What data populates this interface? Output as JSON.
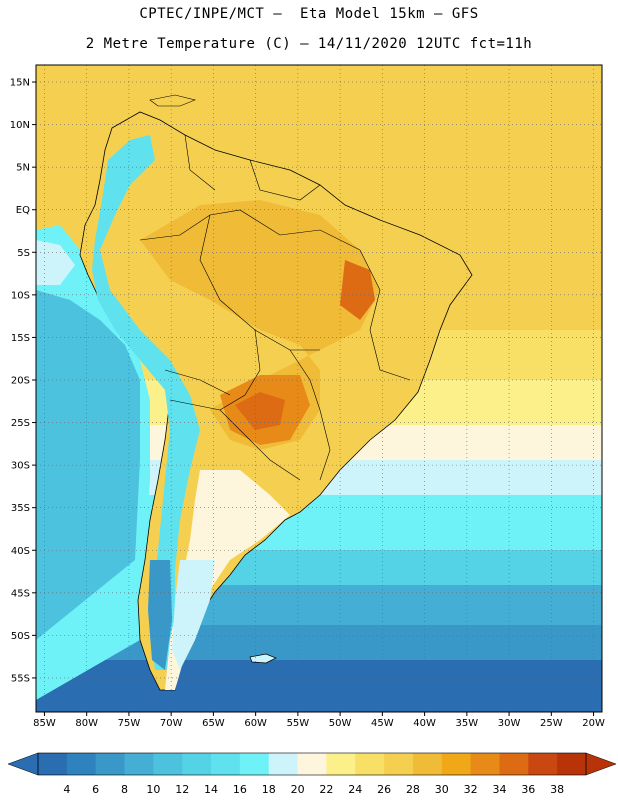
{
  "header": {
    "line1": "CPTEC/INPE/MCT –  Eta Model 15km – GFS",
    "line2": "2 Metre Temperature (C) – 14/11/2020 12UTC fct=11h"
  },
  "map": {
    "lon_range": [
      -86,
      -19
    ],
    "lat_range": [
      -59,
      17
    ],
    "lat_ticks": [
      "15N",
      "10N",
      "5N",
      "EQ",
      "5S",
      "10S",
      "15S",
      "20S",
      "25S",
      "30S",
      "35S",
      "40S",
      "45S",
      "50S",
      "55S"
    ],
    "lat_values": [
      15,
      10,
      5,
      0,
      -5,
      -10,
      -15,
      -20,
      -25,
      -30,
      -35,
      -40,
      -45,
      -50,
      -55
    ],
    "lon_ticks": [
      "85W",
      "80W",
      "75W",
      "70W",
      "65W",
      "60W",
      "55W",
      "50W",
      "45W",
      "40W",
      "35W",
      "30W",
      "25W",
      "20W"
    ],
    "lon_values": [
      -85,
      -80,
      -75,
      -70,
      -65,
      -60,
      -55,
      -50,
      -45,
      -40,
      -35,
      -30,
      -25,
      -20
    ],
    "gridlines": "dotted"
  },
  "colorbar": {
    "labels": [
      "4",
      "6",
      "8",
      "10",
      "12",
      "14",
      "16",
      "18",
      "20",
      "22",
      "24",
      "26",
      "28",
      "30",
      "32",
      "34",
      "36",
      "38"
    ],
    "colors": [
      "#2a6db0",
      "#2e83bf",
      "#3a98c8",
      "#45aed5",
      "#4dc2de",
      "#55d3e6",
      "#5fe2ee",
      "#6ff2f7",
      "#cdf4fb",
      "#fdf5dc",
      "#fbf08a",
      "#f8e067",
      "#f5d050",
      "#f0bc38",
      "#f0a818",
      "#e88a18",
      "#dd6b14",
      "#c94710",
      "#b83408"
    ],
    "left_arrow_color": "#2a6db0",
    "right_arrow_color": "#b83408"
  },
  "legend_colors": {
    "ocean_south": "#2a6db0",
    "ocean_mid": "#4dc2de",
    "ocean_cool": "#6ff2f7",
    "warm_north": "#f5d050",
    "hot_land": "#e88a18",
    "coast": "#000000"
  }
}
